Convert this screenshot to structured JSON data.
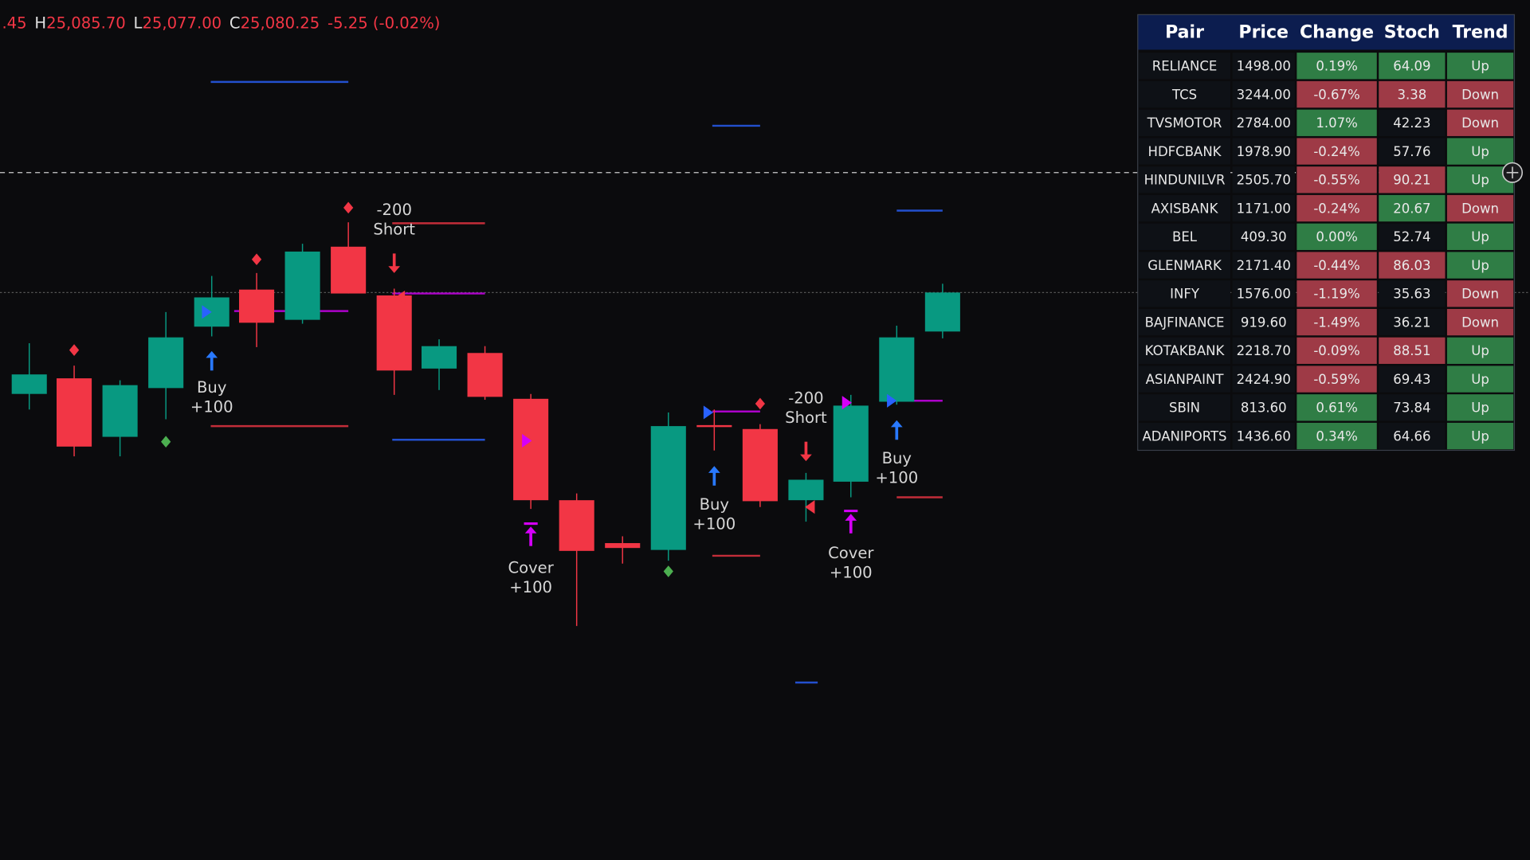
{
  "header": {
    "first": ".45",
    "parts": [
      {
        "key": "H",
        "value": "25,085.70"
      },
      {
        "key": "L",
        "value": "25,077.00"
      },
      {
        "key": "C",
        "value": "25,080.25"
      }
    ],
    "change": "-5.25 (-0.02%)"
  },
  "signals": [
    {
      "lines": [
        "Buy",
        "+100"
      ]
    },
    {
      "lines": [
        "-200",
        "Short"
      ]
    },
    {
      "lines": [
        "Cover",
        "+100"
      ]
    },
    {
      "lines": [
        "Buy",
        "+100"
      ]
    },
    {
      "lines": [
        "-200",
        "Short"
      ]
    },
    {
      "lines": [
        "Buy",
        "+100"
      ]
    },
    {
      "lines": [
        "Cover",
        "+100"
      ]
    }
  ],
  "table": {
    "columns": [
      "Pair",
      "Price",
      "Change",
      "Stoch",
      "Trend"
    ],
    "rows": [
      {
        "cells": [
          "RELIANCE",
          "1498.00",
          "0.19%",
          "64.09",
          "Up"
        ],
        "colors": [
          "#2f7d45",
          "#2f7d45",
          "#2f7d45"
        ]
      },
      {
        "cells": [
          "TCS",
          "3244.00",
          "-0.67%",
          "3.38",
          "Down"
        ],
        "colors": [
          "#9e3a46",
          "#9e3a46",
          "#9e3a46"
        ]
      },
      {
        "cells": [
          "TVSMOTOR",
          "2784.00",
          "1.07%",
          "42.23",
          "Down"
        ],
        "colors": [
          "#2f7d45",
          "#0e1116",
          "#9e3a46"
        ]
      },
      {
        "cells": [
          "HDFCBANK",
          "1978.90",
          "-0.24%",
          "57.76",
          "Up"
        ],
        "colors": [
          "#9e3a46",
          "#0e1116",
          "#2f7d45"
        ]
      },
      {
        "cells": [
          "HINDUNILVR",
          "2505.70",
          "-0.55%",
          "90.21",
          "Up"
        ],
        "colors": [
          "#9e3a46",
          "#9e3a46",
          "#2f7d45"
        ]
      },
      {
        "cells": [
          "AXISBANK",
          "1171.00",
          "-0.24%",
          "20.67",
          "Down"
        ],
        "colors": [
          "#9e3a46",
          "#2f7d45",
          "#9e3a46"
        ]
      },
      {
        "cells": [
          "BEL",
          "409.30",
          "0.00%",
          "52.74",
          "Up"
        ],
        "colors": [
          "#2f7d45",
          "#0e1116",
          "#2f7d45"
        ]
      },
      {
        "cells": [
          "GLENMARK",
          "2171.40",
          "-0.44%",
          "86.03",
          "Up"
        ],
        "colors": [
          "#9e3a46",
          "#9e3a46",
          "#2f7d45"
        ]
      },
      {
        "cells": [
          "INFY",
          "1576.00",
          "-1.19%",
          "35.63",
          "Down"
        ],
        "colors": [
          "#9e3a46",
          "#0e1116",
          "#9e3a46"
        ]
      },
      {
        "cells": [
          "BAJFINANCE",
          "919.60",
          "-1.49%",
          "36.21",
          "Down"
        ],
        "colors": [
          "#9e3a46",
          "#0e1116",
          "#9e3a46"
        ]
      },
      {
        "cells": [
          "KOTAKBANK",
          "2218.70",
          "-0.09%",
          "88.51",
          "Up"
        ],
        "colors": [
          "#9e3a46",
          "#9e3a46",
          "#2f7d45"
        ]
      },
      {
        "cells": [
          "ASIANPAINT",
          "2424.90",
          "-0.59%",
          "69.43",
          "Up"
        ],
        "colors": [
          "#9e3a46",
          "#0e1116",
          "#2f7d45"
        ]
      },
      {
        "cells": [
          "SBIN",
          "813.60",
          "0.61%",
          "73.84",
          "Up"
        ],
        "colors": [
          "#2f7d45",
          "#0e1116",
          "#2f7d45"
        ]
      },
      {
        "cells": [
          "ADANIPORTS",
          "1436.60",
          "0.34%",
          "64.66",
          "Up"
        ],
        "colors": [
          "#2f7d45",
          "#0e1116",
          "#2f7d45"
        ]
      }
    ]
  }
}
